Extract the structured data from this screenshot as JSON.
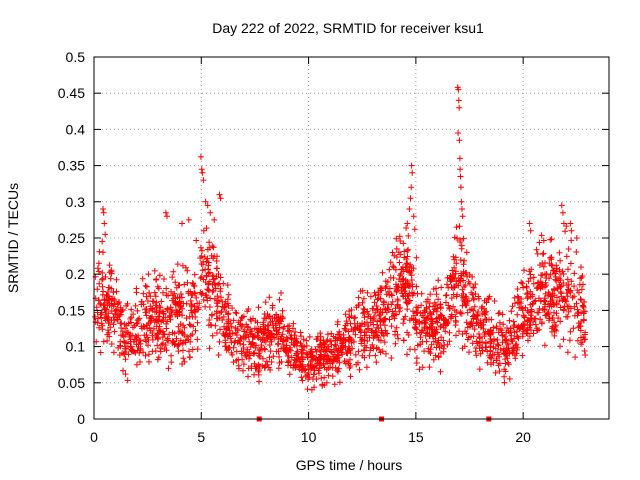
{
  "chart_data": {
    "type": "scatter",
    "title": "Day 222 of 2022, SRMTID for receiver ksu1",
    "xlabel": "GPS time / hours",
    "ylabel": "SRMTID / TECUs",
    "xlim": [
      0,
      24
    ],
    "ylim": [
      0,
      0.5
    ],
    "x_ticks": [
      0,
      5,
      10,
      15,
      20
    ],
    "x_tick_labels": [
      "0",
      "5",
      "10",
      "15",
      "20"
    ],
    "y_ticks": [
      0,
      0.05,
      0.1,
      0.15,
      0.2,
      0.25,
      0.3,
      0.35,
      0.4,
      0.45,
      0.5
    ],
    "y_tick_labels": [
      "0",
      "0.05",
      "0.1",
      "0.15",
      "0.2",
      "0.25",
      "0.3",
      "0.35",
      "0.4",
      "0.45",
      "0.5"
    ],
    "grid": true,
    "marker": "plus",
    "series_color": "#ff0000",
    "baseline_markers_x": [
      7.7,
      13.4,
      18.4
    ],
    "trend_profile": [
      [
        0.0,
        0.15
      ],
      [
        0.5,
        0.16
      ],
      [
        1.0,
        0.14
      ],
      [
        1.5,
        0.11
      ],
      [
        2.0,
        0.12
      ],
      [
        2.5,
        0.15
      ],
      [
        3.0,
        0.14
      ],
      [
        3.5,
        0.13
      ],
      [
        4.0,
        0.15
      ],
      [
        4.5,
        0.14
      ],
      [
        5.0,
        0.2
      ],
      [
        5.5,
        0.19
      ],
      [
        6.0,
        0.14
      ],
      [
        7.0,
        0.11
      ],
      [
        7.5,
        0.1
      ],
      [
        8.0,
        0.11
      ],
      [
        8.5,
        0.13
      ],
      [
        9.0,
        0.11
      ],
      [
        9.5,
        0.09
      ],
      [
        10.0,
        0.08
      ],
      [
        10.5,
        0.08
      ],
      [
        11.0,
        0.09
      ],
      [
        11.5,
        0.1
      ],
      [
        12.0,
        0.11
      ],
      [
        12.5,
        0.12
      ],
      [
        13.0,
        0.13
      ],
      [
        13.5,
        0.14
      ],
      [
        14.0,
        0.17
      ],
      [
        14.5,
        0.2
      ],
      [
        15.0,
        0.15
      ],
      [
        15.5,
        0.12
      ],
      [
        16.0,
        0.13
      ],
      [
        16.5,
        0.14
      ],
      [
        17.0,
        0.2
      ],
      [
        17.5,
        0.15
      ],
      [
        18.0,
        0.13
      ],
      [
        18.5,
        0.11
      ],
      [
        19.0,
        0.1
      ],
      [
        19.5,
        0.11
      ],
      [
        20.0,
        0.14
      ],
      [
        20.5,
        0.16
      ],
      [
        21.0,
        0.18
      ],
      [
        21.5,
        0.17
      ],
      [
        22.0,
        0.19
      ],
      [
        22.5,
        0.17
      ],
      [
        22.9,
        0.13
      ]
    ],
    "spikes": [
      [
        0.42,
        0.29
      ],
      [
        0.45,
        0.285
      ],
      [
        0.48,
        0.27
      ],
      [
        0.52,
        0.255
      ],
      [
        0.38,
        0.245
      ],
      [
        3.35,
        0.285
      ],
      [
        3.4,
        0.28
      ],
      [
        4.42,
        0.275
      ],
      [
        4.1,
        0.27
      ],
      [
        4.98,
        0.362
      ],
      [
        5.02,
        0.345
      ],
      [
        5.05,
        0.34
      ],
      [
        5.1,
        0.33
      ],
      [
        5.2,
        0.3
      ],
      [
        5.3,
        0.295
      ],
      [
        5.42,
        0.285
      ],
      [
        5.85,
        0.31
      ],
      [
        5.9,
        0.305
      ],
      [
        5.6,
        0.275
      ],
      [
        14.8,
        0.35
      ],
      [
        14.83,
        0.34
      ],
      [
        14.78,
        0.32
      ],
      [
        14.75,
        0.305
      ],
      [
        14.7,
        0.29
      ],
      [
        14.9,
        0.28
      ],
      [
        14.6,
        0.27
      ],
      [
        14.95,
        0.262
      ],
      [
        16.95,
        0.458
      ],
      [
        16.98,
        0.455
      ],
      [
        17.0,
        0.44
      ],
      [
        17.02,
        0.43
      ],
      [
        16.97,
        0.395
      ],
      [
        17.03,
        0.385
      ],
      [
        17.05,
        0.36
      ],
      [
        17.06,
        0.345
      ],
      [
        17.08,
        0.335
      ],
      [
        17.1,
        0.32
      ],
      [
        17.12,
        0.3
      ],
      [
        17.15,
        0.29
      ],
      [
        17.18,
        0.28
      ],
      [
        16.9,
        0.265
      ],
      [
        21.8,
        0.295
      ],
      [
        21.85,
        0.285
      ],
      [
        21.9,
        0.27
      ],
      [
        20.3,
        0.27
      ],
      [
        20.35,
        0.26
      ],
      [
        22.2,
        0.27
      ],
      [
        22.25,
        0.26
      ],
      [
        22.5,
        0.25
      ]
    ]
  }
}
